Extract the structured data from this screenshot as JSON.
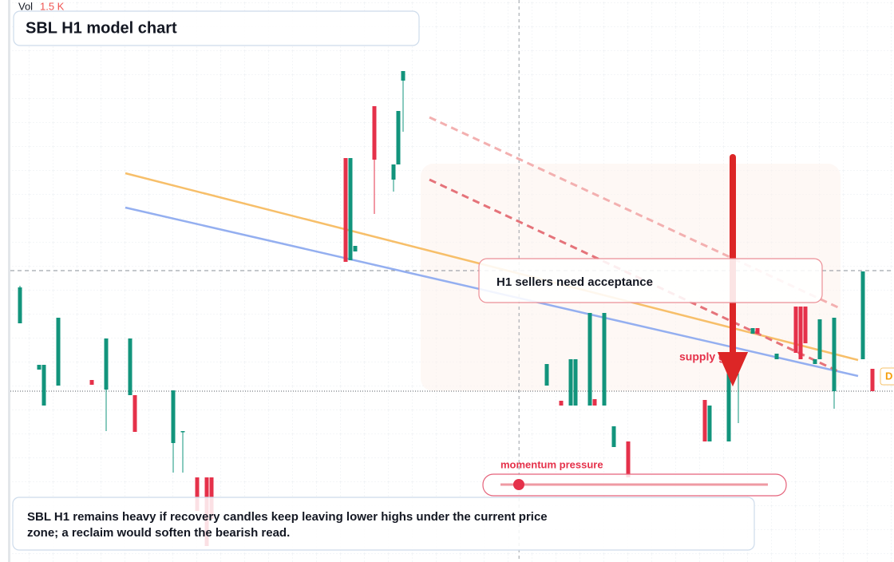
{
  "chart_data": {
    "type": "candlestick",
    "title": "SBL H1 model chart",
    "volume_label": "Vol",
    "volume_text": "1.5 K",
    "callout": "H1 sellers need acceptance",
    "zone_label": "supply gap",
    "gauge_label": "momentum pressure",
    "note": [
      "SBL H1 remains heavy if recovery candles keep leaving lower highs under the current price",
      "zone; a reclaim would soften the bearish read."
    ],
    "edge_label": "D",
    "up_color": "#12947c",
    "down_color": "#e5314a",
    "xlim": [
      0,
      184
    ],
    "ylim": [
      0,
      70.4
    ],
    "x": [
      2,
      6,
      7,
      10,
      17,
      20,
      25,
      26,
      34,
      36,
      39,
      41,
      42,
      70,
      71,
      72,
      76,
      80,
      81,
      82,
      112,
      115,
      117,
      118,
      121,
      122,
      124,
      126,
      129,
      145,
      146,
      150,
      152,
      155,
      156,
      160,
      164,
      165,
      166,
      168,
      169,
      172,
      178,
      180
    ],
    "open": [
      29.9,
      24.1,
      19.6,
      22.1,
      22.8,
      21.6,
      20.9,
      20.9,
      14.9,
      16.4,
      10.6,
      10.6,
      10.6,
      50.6,
      37.8,
      38.9,
      57.1,
      47.9,
      49.8,
      60.3,
      22.1,
      20.2,
      19.6,
      19.6,
      19.6,
      20.4,
      19.6,
      14.4,
      15.1,
      20.3,
      15.1,
      15.1,
      24.4,
      28.6,
      29.3,
      25.4,
      32.0,
      32.0,
      32.0,
      24.8,
      25.4,
      21.4,
      25.4,
      24.2
    ],
    "high": [
      34.6,
      24.7,
      24.7,
      30.6,
      22.8,
      28.0,
      28.0,
      20.9,
      21.5,
      16.4,
      10.6,
      10.6,
      10.6,
      50.6,
      50.6,
      39.6,
      57.1,
      49.8,
      56.5,
      61.5,
      24.8,
      20.2,
      25.4,
      25.4,
      31.2,
      20.4,
      31.2,
      17.0,
      15.1,
      20.3,
      19.6,
      25.6,
      25.2,
      29.3,
      29.3,
      26.1,
      32.0,
      32.0,
      32.0,
      25.4,
      30.4,
      30.6,
      36.4,
      24.2
    ],
    "low": [
      29.9,
      24.1,
      19.6,
      22.1,
      22.2,
      16.4,
      20.9,
      16.3,
      11.2,
      11.2,
      6.4,
      2.0,
      5.4,
      37.6,
      37.8,
      38.9,
      43.6,
      46.4,
      49.8,
      53.9,
      22.1,
      19.6,
      19.6,
      19.6,
      19.6,
      19.6,
      19.6,
      14.4,
      10.6,
      15.1,
      15.1,
      15.1,
      17.4,
      28.6,
      28.6,
      25.4,
      26.2,
      25.4,
      27.4,
      24.8,
      25.4,
      19.2,
      25.4,
      21.4
    ],
    "close": [
      34.4,
      24.7,
      24.7,
      30.6,
      22.2,
      28.0,
      28.0,
      16.3,
      21.5,
      16.4,
      6.4,
      2.0,
      5.4,
      37.6,
      50.6,
      39.6,
      50.4,
      49.8,
      56.5,
      61.5,
      24.8,
      19.6,
      25.4,
      25.4,
      31.2,
      19.6,
      31.2,
      17.0,
      10.6,
      15.1,
      19.6,
      25.6,
      25.2,
      29.3,
      28.6,
      26.1,
      26.2,
      25.4,
      27.4,
      25.4,
      30.4,
      30.6,
      36.4,
      21.4
    ],
    "trendlines": [
      {
        "color": "#f7bf6a",
        "dashed": false,
        "points": [
          [
            24,
            48.7
          ],
          [
            177,
            25.3
          ]
        ]
      },
      {
        "color": "#94aff0",
        "dashed": false,
        "points": [
          [
            24,
            44.4
          ],
          [
            177,
            23.3
          ]
        ]
      },
      {
        "color": "#e5737a",
        "dashed": true,
        "points": [
          [
            87.5,
            47.9
          ],
          [
            172.8,
            23.9
          ]
        ]
      },
      {
        "color": "#f3b0b0",
        "dashed": true,
        "points": [
          [
            87.5,
            55.7
          ],
          [
            172.8,
            31.9
          ]
        ]
      }
    ],
    "price_lines": [
      36.5,
      21.4
    ],
    "crosshair_x": 106.2
  }
}
